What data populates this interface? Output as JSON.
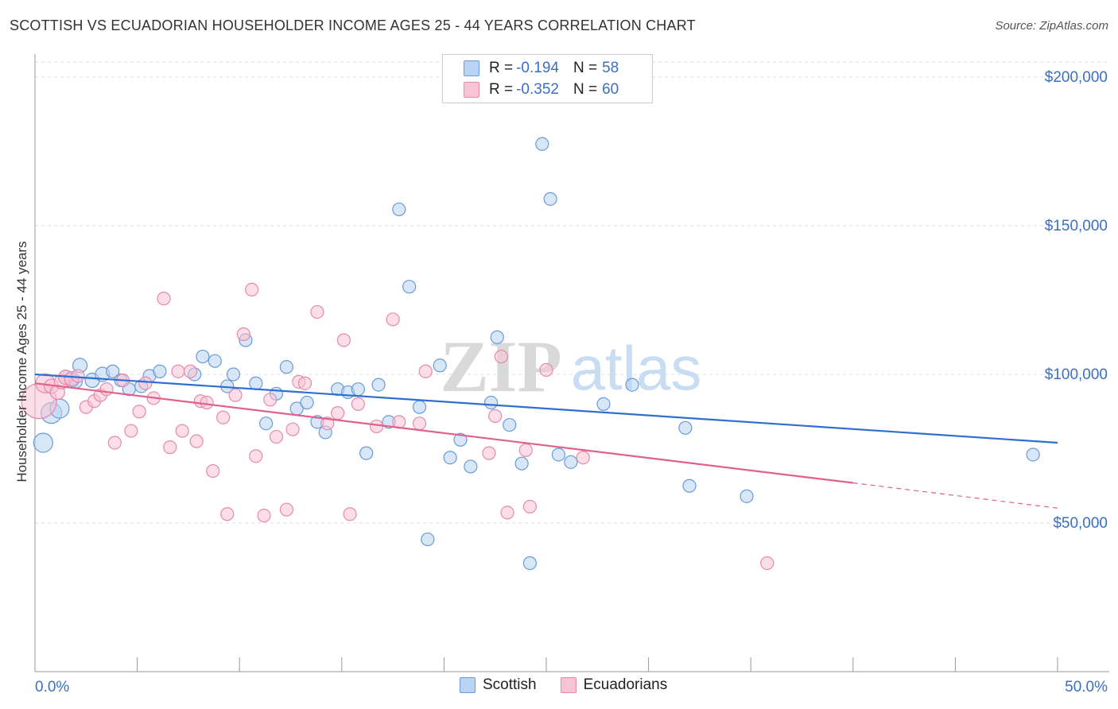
{
  "title": "SCOTTISH VS ECUADORIAN HOUSEHOLDER INCOME AGES 25 - 44 YEARS CORRELATION CHART",
  "source": "Source: ZipAtlas.com",
  "watermark": {
    "zip": "ZIP",
    "atlas": "atlas"
  },
  "legend": {
    "rows": [
      {
        "r_label": "R =",
        "r_value": "-0.194",
        "n_label": "N =",
        "n_value": "58"
      },
      {
        "r_label": "R =",
        "r_value": "-0.352",
        "n_label": "N =",
        "n_value": "60"
      }
    ]
  },
  "bottom_legend": {
    "scottish": "Scottish",
    "ecuadorians": "Ecuadorians"
  },
  "colors": {
    "scottish_fill": "#b8d3f3",
    "scottish_stroke": "#6a9ad8",
    "scottish_line": "#2f6fd1",
    "ecuadorian_fill": "#f8c3d5",
    "ecuadorian_stroke": "#e58aab",
    "ecuadorian_line": "#e0608e",
    "tick_text": "#3a6fc4",
    "grid": "#dcdcdc"
  },
  "chart_data": {
    "type": "scatter",
    "title": "SCOTTISH VS ECUADORIAN HOUSEHOLDER INCOME AGES 25 - 44 YEARS CORRELATION CHART",
    "xlabel": "",
    "ylabel": "Householder Income Ages 25 - 44 years",
    "xlim": [
      0,
      50
    ],
    "ylim": [
      0,
      210000
    ],
    "x_tick_labels": [
      "0.0%",
      "50.0%"
    ],
    "y_ticks": [
      50000,
      100000,
      150000,
      200000
    ],
    "y_tick_labels": [
      "$50,000",
      "$100,000",
      "$150,000",
      "$200,000"
    ],
    "grid": true,
    "legend_position": "top-center",
    "series": [
      {
        "name": "Scottish",
        "r": -0.194,
        "n": 58,
        "trend": {
          "x0": 0,
          "y0": 100000,
          "x1": 50,
          "y1": 77000
        },
        "points": [
          [
            0.4,
            77000,
            12
          ],
          [
            0.8,
            87000,
            13
          ],
          [
            1.2,
            88500,
            12
          ],
          [
            1.5,
            99000,
            9
          ],
          [
            1.8,
            98000,
            9
          ],
          [
            2.2,
            103000,
            9
          ],
          [
            2.8,
            98000,
            9
          ],
          [
            3.3,
            100000,
            9
          ],
          [
            3.8,
            101000,
            8
          ],
          [
            4.2,
            98000,
            8
          ],
          [
            4.6,
            95000,
            8
          ],
          [
            5.2,
            96000,
            8
          ],
          [
            5.6,
            99500,
            8
          ],
          [
            6.1,
            101000,
            8
          ],
          [
            7.8,
            100000,
            8
          ],
          [
            8.2,
            106000,
            8
          ],
          [
            8.8,
            104500,
            8
          ],
          [
            9.4,
            96000,
            8
          ],
          [
            9.7,
            100000,
            8
          ],
          [
            10.3,
            111500,
            8
          ],
          [
            10.8,
            97000,
            8
          ],
          [
            11.3,
            83500,
            8
          ],
          [
            11.8,
            93500,
            8
          ],
          [
            12.3,
            102500,
            8
          ],
          [
            12.8,
            88500,
            8
          ],
          [
            13.3,
            90500,
            8
          ],
          [
            13.8,
            84000,
            8
          ],
          [
            14.2,
            80500,
            8
          ],
          [
            14.8,
            95000,
            8
          ],
          [
            15.3,
            94000,
            8
          ],
          [
            15.8,
            95000,
            8
          ],
          [
            16.2,
            73500,
            8
          ],
          [
            16.8,
            96500,
            8
          ],
          [
            17.3,
            84000,
            8
          ],
          [
            17.8,
            155500,
            8
          ],
          [
            18.3,
            129500,
            8
          ],
          [
            18.8,
            89000,
            8
          ],
          [
            19.2,
            44500,
            8
          ],
          [
            19.8,
            103000,
            8
          ],
          [
            20.3,
            72000,
            8
          ],
          [
            20.8,
            78000,
            8
          ],
          [
            21.3,
            69000,
            8
          ],
          [
            22.3,
            90500,
            8
          ],
          [
            22.6,
            112500,
            8
          ],
          [
            23.2,
            83000,
            8
          ],
          [
            23.8,
            70000,
            8
          ],
          [
            24.2,
            36500,
            8
          ],
          [
            24.8,
            177500,
            8
          ],
          [
            25.2,
            159000,
            8
          ],
          [
            25.6,
            73000,
            8
          ],
          [
            26.2,
            70500,
            8
          ],
          [
            27.8,
            90000,
            8
          ],
          [
            29.2,
            96500,
            8
          ],
          [
            31.8,
            82000,
            8
          ],
          [
            32.0,
            62500,
            8
          ],
          [
            34.8,
            59000,
            8
          ],
          [
            48.8,
            73000,
            8
          ],
          [
            2.0,
            97500,
            8
          ]
        ]
      },
      {
        "name": "Ecuadorians",
        "r": -0.352,
        "n": 60,
        "trend": {
          "x0": 0,
          "y0": 97000,
          "x1": 40,
          "y1": 63500,
          "dash_to_x": 50,
          "dash_to_y": 55000
        },
        "points": [
          [
            0.2,
            91000,
            22
          ],
          [
            0.5,
            97000,
            12
          ],
          [
            0.8,
            96000,
            9
          ],
          [
            1.1,
            94000,
            9
          ],
          [
            1.3,
            97500,
            9
          ],
          [
            1.5,
            99000,
            9
          ],
          [
            1.8,
            98500,
            9
          ],
          [
            2.1,
            99500,
            8
          ],
          [
            2.5,
            89000,
            8
          ],
          [
            2.9,
            91000,
            8
          ],
          [
            3.2,
            93000,
            8
          ],
          [
            3.5,
            95000,
            8
          ],
          [
            3.9,
            77000,
            8
          ],
          [
            4.3,
            98000,
            8
          ],
          [
            4.7,
            81000,
            8
          ],
          [
            5.1,
            87500,
            8
          ],
          [
            5.4,
            97000,
            8
          ],
          [
            5.8,
            92000,
            8
          ],
          [
            6.3,
            125500,
            8
          ],
          [
            6.6,
            75500,
            8
          ],
          [
            7.0,
            101000,
            8
          ],
          [
            7.2,
            81000,
            8
          ],
          [
            7.6,
            101000,
            8
          ],
          [
            7.9,
            77500,
            8
          ],
          [
            8.1,
            91000,
            8
          ],
          [
            8.4,
            90500,
            8
          ],
          [
            8.7,
            67500,
            8
          ],
          [
            9.2,
            85500,
            8
          ],
          [
            9.4,
            53000,
            8
          ],
          [
            9.8,
            93000,
            8
          ],
          [
            10.2,
            113500,
            8
          ],
          [
            10.6,
            128500,
            8
          ],
          [
            10.8,
            72500,
            8
          ],
          [
            11.2,
            52500,
            8
          ],
          [
            11.5,
            91500,
            8
          ],
          [
            11.8,
            79000,
            8
          ],
          [
            12.3,
            54500,
            8
          ],
          [
            12.6,
            81500,
            8
          ],
          [
            12.9,
            97500,
            8
          ],
          [
            13.2,
            97000,
            8
          ],
          [
            13.8,
            121000,
            8
          ],
          [
            14.3,
            83500,
            8
          ],
          [
            14.8,
            87000,
            8
          ],
          [
            15.1,
            111500,
            8
          ],
          [
            15.4,
            53000,
            8
          ],
          [
            15.8,
            90000,
            8
          ],
          [
            17.5,
            118500,
            8
          ],
          [
            17.8,
            84000,
            8
          ],
          [
            18.8,
            83500,
            8
          ],
          [
            19.1,
            101000,
            8
          ],
          [
            22.2,
            73500,
            8
          ],
          [
            22.5,
            86000,
            8
          ],
          [
            22.8,
            106000,
            8
          ],
          [
            23.1,
            53500,
            8
          ],
          [
            24.0,
            74500,
            8
          ],
          [
            24.2,
            55500,
            8
          ],
          [
            25.0,
            101500,
            8
          ],
          [
            26.8,
            72000,
            8
          ],
          [
            35.8,
            36500,
            8
          ],
          [
            16.7,
            82500,
            8
          ]
        ]
      }
    ]
  }
}
